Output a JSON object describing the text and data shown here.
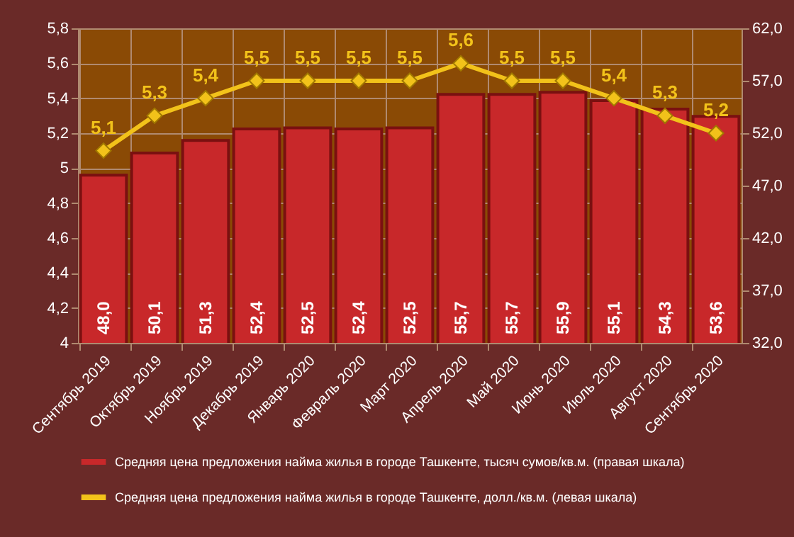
{
  "chart_data": {
    "type": "bar",
    "categories": [
      "Сентябрь 2019",
      "Октябрь 2019",
      "Ноябрь 2019",
      "Декабрь 2019",
      "Январь 2020",
      "Февраль 2020",
      "Март 2020",
      "Апрель 2020",
      "Май 2020",
      "Июнь 2020",
      "Июль 2020",
      "Август 2020",
      "Сентябрь 2020"
    ],
    "series": [
      {
        "name": "Средняя цена предложения найма жилья в городе Ташкенте, тысяч сумов/кв.м. (правая шкала)",
        "axis": "y2",
        "color": "#c8282a",
        "values": [
          48.0,
          50.1,
          51.3,
          52.4,
          52.5,
          52.4,
          52.5,
          55.7,
          55.7,
          55.9,
          55.1,
          54.3,
          53.6
        ],
        "value_labels": [
          "48,0",
          "50,1",
          "51,3",
          "52,4",
          "52,5",
          "52,4",
          "52,5",
          "55,7",
          "55,7",
          "55,9",
          "55,1",
          "54,3",
          "53,6"
        ]
      },
      {
        "name": "Средняя цена предложения найма жилья в городе Ташкенте, долл./кв.м. (левая шкала)",
        "type": "line",
        "color": "#f2c21a",
        "values": [
          5.1,
          5.3,
          5.4,
          5.5,
          5.5,
          5.5,
          5.5,
          5.6,
          5.5,
          5.5,
          5.4,
          5.3,
          5.2
        ],
        "value_labels": [
          "5,1",
          "5,3",
          "5,4",
          "5,5",
          "5,5",
          "5,5",
          "5,5",
          "5,6",
          "5,5",
          "5,5",
          "5,4",
          "5,3",
          "5,2"
        ]
      }
    ],
    "ylim": [
      4,
      5.8
    ],
    "yticks": [
      {
        "value": 4,
        "label": "4"
      },
      {
        "value": 4.2,
        "label": "4,2"
      },
      {
        "value": 4.4,
        "label": "4,4"
      },
      {
        "value": 4.6,
        "label": "4,6"
      },
      {
        "value": 4.8,
        "label": "4,8"
      },
      {
        "value": 5,
        "label": "5"
      },
      {
        "value": 5.2,
        "label": "5,2"
      },
      {
        "value": 5.4,
        "label": "5,4"
      },
      {
        "value": 5.6,
        "label": "5,6"
      },
      {
        "value": 5.8,
        "label": "5,8"
      }
    ],
    "y2lim": [
      32,
      62
    ],
    "y2ticks": [
      {
        "value": 32,
        "label": "32,0"
      },
      {
        "value": 37,
        "label": "37,0"
      },
      {
        "value": 42,
        "label": "42,0"
      },
      {
        "value": 47,
        "label": "47,0"
      },
      {
        "value": 52,
        "label": "52,0"
      },
      {
        "value": 57,
        "label": "57,0"
      },
      {
        "value": 62,
        "label": "62,0"
      }
    ],
    "grid": true,
    "legend": "bottom",
    "marker": "diamond",
    "line_style": "solid"
  }
}
